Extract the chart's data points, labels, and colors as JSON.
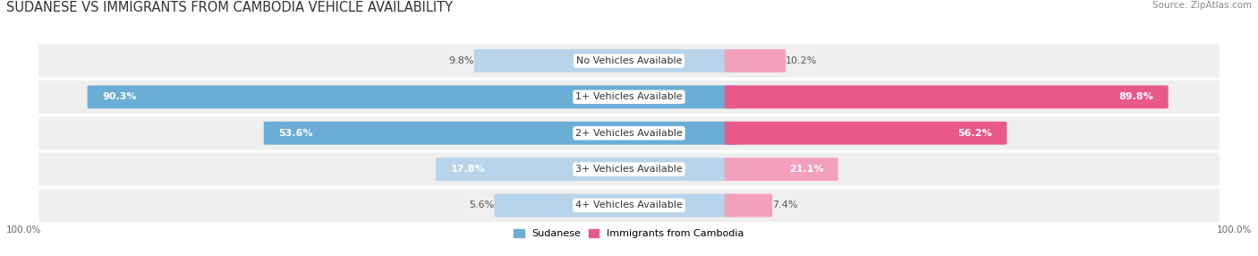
{
  "title": "SUDANESE VS IMMIGRANTS FROM CAMBODIA VEHICLE AVAILABILITY",
  "source": "Source: ZipAtlas.com",
  "categories": [
    "No Vehicles Available",
    "1+ Vehicles Available",
    "2+ Vehicles Available",
    "3+ Vehicles Available",
    "4+ Vehicles Available"
  ],
  "sudanese": [
    9.8,
    90.3,
    53.6,
    17.8,
    5.6
  ],
  "cambodia": [
    10.2,
    89.8,
    56.2,
    21.1,
    7.4
  ],
  "blue_dark": "#6aaed6",
  "blue_light": "#b8d4ea",
  "pink_dark": "#e8588a",
  "pink_light": "#f4a0bc",
  "bg_row": "#efefef",
  "title_color": "#333333",
  "source_color": "#888888",
  "label_dark_color": "#555555",
  "title_fontsize": 10.5,
  "cat_fontsize": 8.0,
  "val_fontsize": 8.0,
  "tick_fontsize": 7.5,
  "source_fontsize": 7.5,
  "legend_fontsize": 8.0
}
